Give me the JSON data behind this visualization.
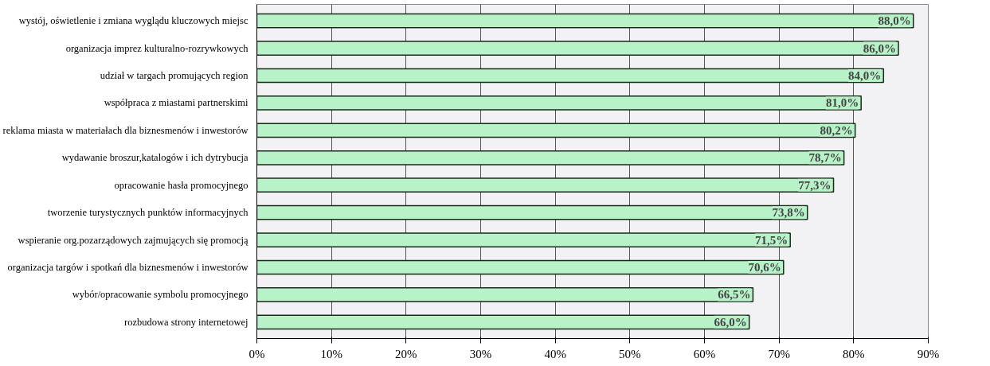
{
  "chart_data": {
    "type": "bar",
    "orientation": "horizontal",
    "categories": [
      "wystój, oświetlenie i zmiana wyglądu kluczowych miejsc",
      "organizacja imprez kulturalno-rozrywkowych",
      "udział w targach promujących region",
      "współpraca z miastami partnerskimi",
      "reklama miasta w materiałach dla biznesmenów i inwestorów",
      "wydawanie broszur,katalogów i ich dytrybucja",
      "opracowanie hasła promocyjnego",
      "tworzenie turystycznych punktów informacyjnych",
      "wspieranie org.pozarządowych zajmujących się promocją",
      "organizacja targów i spotkań dla biznesmenów i inwestorów",
      "wybór/opracowanie symbolu promocyjnego",
      "rozbudowa strony internetowej"
    ],
    "values": [
      88.0,
      86.0,
      84.0,
      81.0,
      80.2,
      78.7,
      77.3,
      73.8,
      71.5,
      70.6,
      66.5,
      66.0
    ],
    "value_labels": [
      "88,0%",
      "86,0%",
      "84,0%",
      "81,0%",
      "80,2%",
      "78,7%",
      "77,3%",
      "73,8%",
      "71,5%",
      "70,6%",
      "66,5%",
      "66,0%"
    ],
    "color": "#b8f2c8",
    "xlim": [
      0,
      90
    ],
    "xticks": [
      {
        "value": 0,
        "label": "0%"
      },
      {
        "value": 10,
        "label": "10%"
      },
      {
        "value": 20,
        "label": "20%"
      },
      {
        "value": 30,
        "label": "30%"
      },
      {
        "value": 40,
        "label": "40%"
      },
      {
        "value": 50,
        "label": "50%"
      },
      {
        "value": 60,
        "label": "60%"
      },
      {
        "value": 70,
        "label": "70%"
      },
      {
        "value": 80,
        "label": "80%"
      },
      {
        "value": 90,
        "label": "90%"
      }
    ],
    "grid": "x"
  }
}
